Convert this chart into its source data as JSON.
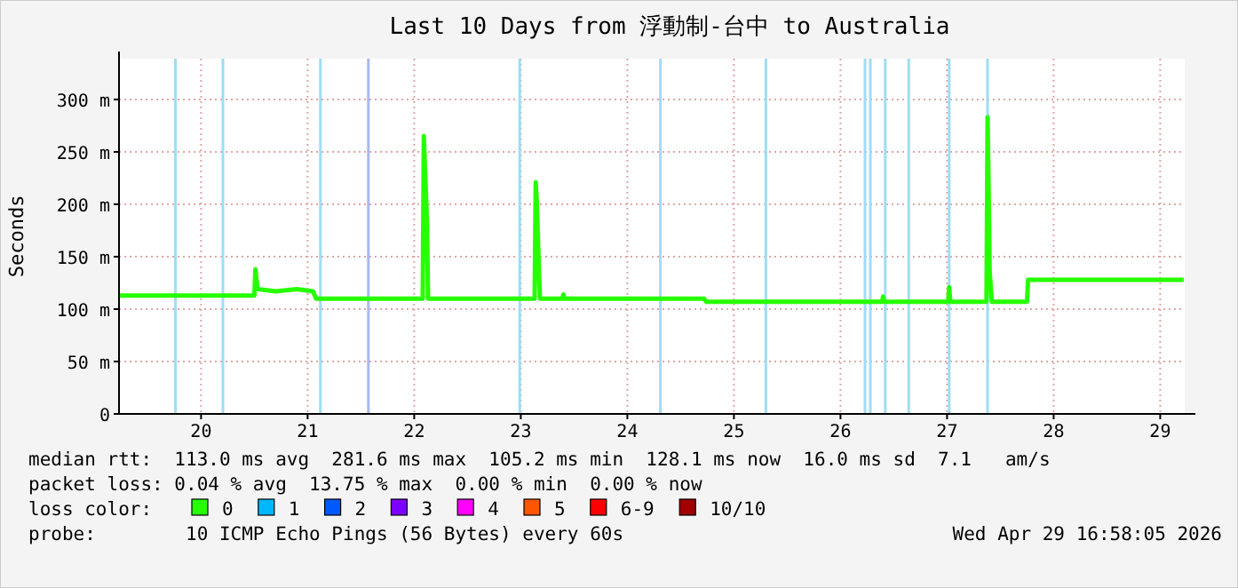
{
  "chart_data": {
    "type": "line",
    "title": "Last 10 Days from 浮動制-台中 to Australia",
    "ylabel": "Seconds",
    "xlim": [
      19.23,
      29.23
    ],
    "xticks": [
      20,
      21,
      22,
      23,
      24,
      25,
      26,
      27,
      28,
      29
    ],
    "ylim": [
      0,
      339
    ],
    "yticks": [
      0,
      {
        "value": 50,
        "label": "50 m"
      },
      {
        "value": 100,
        "label": "100 m"
      },
      {
        "value": 150,
        "label": "150 m"
      },
      {
        "value": 200,
        "label": "200 m"
      },
      {
        "value": 250,
        "label": "250 m"
      },
      {
        "value": 300,
        "label": "300 m"
      }
    ],
    "grid": true,
    "legend": "bottom",
    "legend_title": "loss color:",
    "marker": "none",
    "line_style": "solid",
    "series": [
      {
        "name": "0",
        "color": "#26ff00",
        "x": [
          19.23,
          20.5,
          20.51,
          20.53,
          20.7,
          20.9,
          21.05,
          21.08,
          22.08,
          22.09,
          22.12,
          22.13,
          23.13,
          23.14,
          23.15,
          23.17,
          23.18,
          23.39,
          23.4,
          23.41,
          24.72,
          24.74,
          26.39,
          26.4,
          26.41,
          27.01,
          27.02,
          27.03,
          27.37,
          27.38,
          27.39,
          27.4,
          27.42,
          27.75,
          27.76,
          29.22
        ],
        "values": [
          113,
          113,
          138,
          119,
          117,
          119,
          117,
          110,
          110,
          265,
          183,
          110,
          110,
          221,
          203,
          138,
          110,
          110,
          114,
          110,
          110,
          107,
          107,
          112,
          107,
          107,
          121,
          107,
          107,
          283,
          214,
          135,
          107,
          107,
          128,
          128
        ]
      },
      {
        "name": "1",
        "color": "#00b8ff"
      },
      {
        "name": "2",
        "color": "#0059ff"
      },
      {
        "name": "3",
        "color": "#7e00ff"
      },
      {
        "name": "4",
        "color": "#ff00ff"
      },
      {
        "name": "5",
        "color": "#ff5500"
      },
      {
        "name": "6-9",
        "color": "#ff0000"
      },
      {
        "name": "10/10",
        "color": "#a10000"
      }
    ],
    "ref_lines": [
      {
        "axis": "x",
        "value": 19.76,
        "color": "#9fdcf5"
      },
      {
        "axis": "x",
        "value": 20.205,
        "color": "#9fdcf5"
      },
      {
        "axis": "x",
        "value": 21.12,
        "color": "#9fdcf5"
      },
      {
        "axis": "x",
        "value": 21.57,
        "color": "#a8b8f0"
      },
      {
        "axis": "x",
        "value": 22.99,
        "color": "#9fdcf5"
      },
      {
        "axis": "x",
        "value": 24.31,
        "color": "#9fdcf5"
      },
      {
        "axis": "x",
        "value": 25.3,
        "color": "#9fdcf5"
      },
      {
        "axis": "x",
        "value": 26.23,
        "color": "#9fdcf5"
      },
      {
        "axis": "x",
        "value": 26.28,
        "color": "#9fdcf5"
      },
      {
        "axis": "x",
        "value": 26.42,
        "color": "#9fdcf5"
      },
      {
        "axis": "x",
        "value": 26.64,
        "color": "#9fdcf5"
      },
      {
        "axis": "x",
        "value": 27.02,
        "color": "#9fdcf5"
      },
      {
        "axis": "x",
        "value": 27.38,
        "color": "#9fdcf5"
      }
    ],
    "annotations": [
      "median rtt:  113.0 ms avg  281.6 ms max  105.2 ms min  128.1 ms now  16.0 ms sd  7.1   am/s",
      "packet loss: 0.04 % avg  13.75 % max  0.00 % min  0.00 % now",
      "probe:        10 ICMP Echo Pings (56 Bytes) every 60s",
      "Wed Apr 29 16:58:05 2026"
    ]
  }
}
